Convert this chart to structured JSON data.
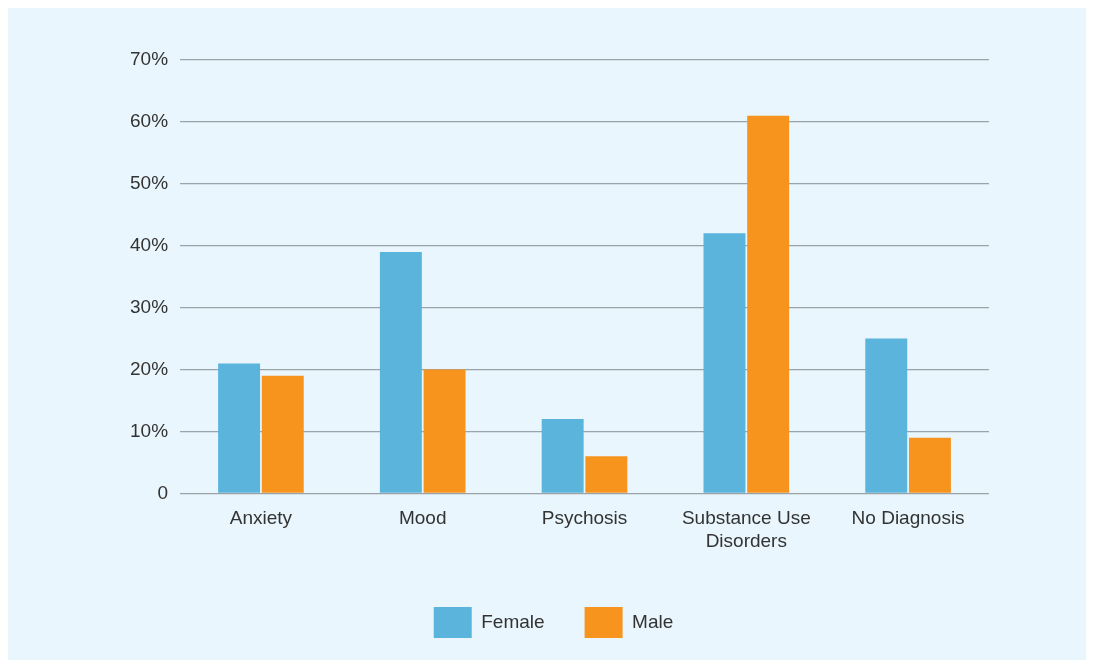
{
  "chart_data": {
    "type": "bar",
    "categories": [
      "Anxiety",
      "Mood",
      "Psychosis",
      "Substance Use Disorders",
      "No Diagnosis"
    ],
    "series": [
      {
        "name": "Female",
        "color": "#5ab4dc",
        "values": [
          21,
          39,
          12,
          42,
          25
        ]
      },
      {
        "name": "Male",
        "color": "#f7941e",
        "values": [
          19,
          20,
          6,
          61,
          9
        ]
      }
    ],
    "ylim": [
      0,
      70
    ],
    "yticks": [
      0,
      {
        "value": 10,
        "label": "10%"
      },
      {
        "value": 20,
        "label": "20%"
      },
      {
        "value": 30,
        "label": "30%"
      },
      {
        "value": 40,
        "label": "40%"
      },
      {
        "value": 50,
        "label": "50%"
      },
      {
        "value": 60,
        "label": "60%"
      },
      {
        "value": 70,
        "label": "70%"
      }
    ],
    "grid": "y",
    "legend": "bottom"
  }
}
